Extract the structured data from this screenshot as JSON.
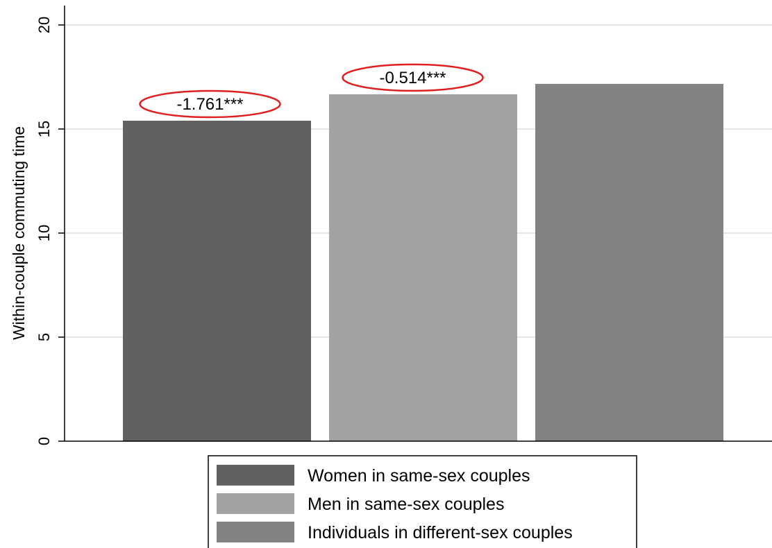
{
  "chart_data": {
    "type": "bar",
    "ylabel": "Within-couple commuting time",
    "ylim": [
      0,
      20
    ],
    "yticks": [
      0,
      5,
      10,
      15,
      20
    ],
    "grid": true,
    "legend_position": "bottom-center",
    "series": [
      {
        "name": "Women in same-sex couples",
        "value": 15.4,
        "label": "-1.761***",
        "color": "#616161",
        "label_circled": true
      },
      {
        "name": "Men in same-sex couples",
        "value": 16.67,
        "label": "-0.514***",
        "color": "#a2a2a2",
        "label_circled": true
      },
      {
        "name": "Individuals in different-sex couples",
        "value": 17.17,
        "label": "",
        "color": "#828282",
        "label_circled": false
      }
    ],
    "annotation_color": "#e02020"
  }
}
